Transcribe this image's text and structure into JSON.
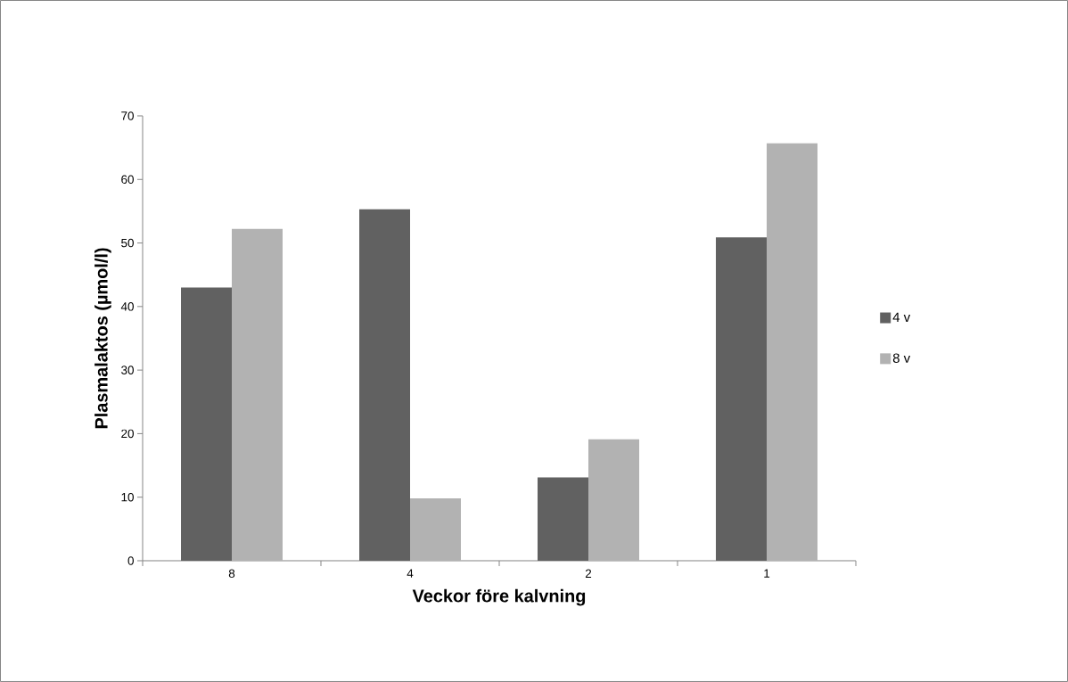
{
  "chart_data": {
    "type": "bar",
    "xlabel": "Veckor före kalvning",
    "ylabel": "Plasmalaktos (µmol/l)",
    "categories": [
      "8",
      "4",
      "2",
      "1"
    ],
    "series": [
      {
        "name": "4 v",
        "color": "#616161",
        "values": [
          43.0,
          55.3,
          13.1,
          50.9
        ]
      },
      {
        "name": "8 v",
        "color": "#b2b2b2",
        "values": [
          52.2,
          9.8,
          19.1,
          65.7
        ]
      }
    ],
    "ylim": [
      0,
      70
    ],
    "yticks": [
      0,
      10,
      20,
      30,
      40,
      50,
      60,
      70
    ],
    "grid": false,
    "legend": "right"
  }
}
